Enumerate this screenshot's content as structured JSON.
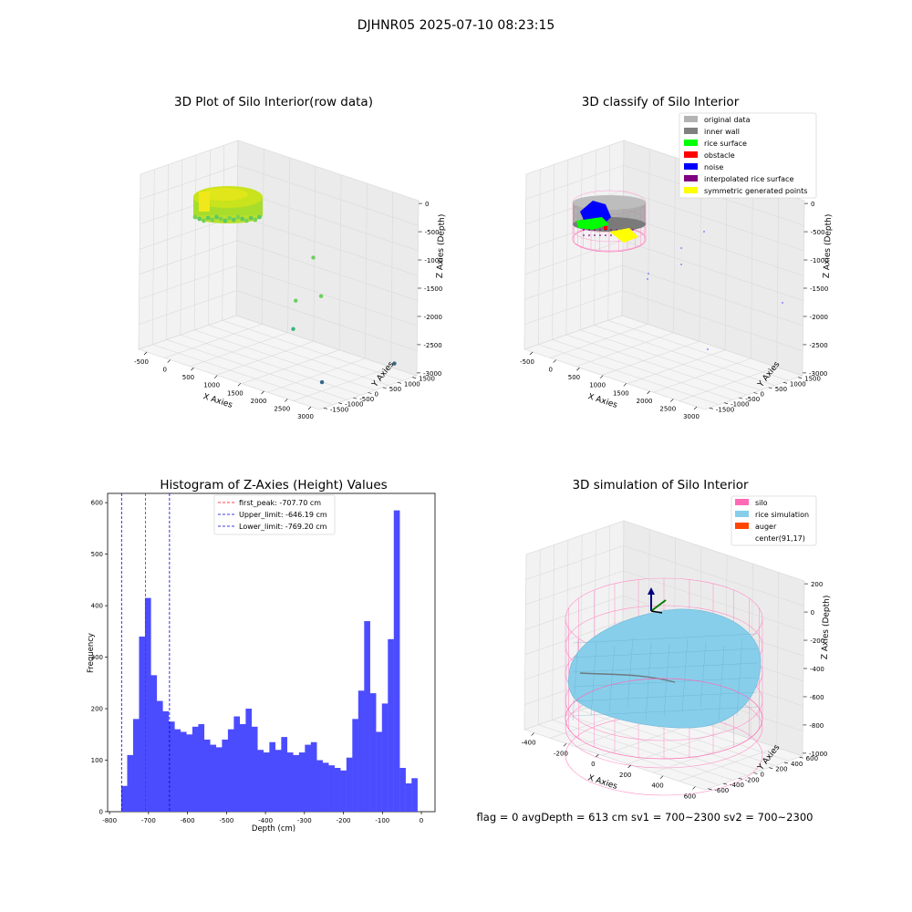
{
  "suptitle": "DJHNR05 2025-07-10 08:23:15",
  "footer": "flag = 0     avgDepth = 613 cm  sv1 = 700~2300  sv2 = 700~2300",
  "chart_data": [
    {
      "type": "scatter",
      "projection": "3d",
      "title": "3D Plot of Silo Interior(row data)",
      "xlabel": "X Axies",
      "ylabel": "Y Axies",
      "zlabel": "Z Axies (Depth)",
      "xticks": [
        "-500",
        "0",
        "500",
        "1000",
        "1500",
        "2000",
        "2500",
        "3000"
      ],
      "yticks": [
        "1500",
        "1000",
        "500",
        "0",
        "-500",
        "-1000",
        "-1500"
      ],
      "zticks": [
        "0",
        "-500",
        "-1000",
        "-1500",
        "-2000",
        "-2500",
        "-3000"
      ],
      "xlim": [
        -700,
        3200
      ],
      "ylim": [
        -1700,
        1700
      ],
      "zlim": [
        -3100,
        200
      ],
      "colormap": "viridis",
      "outliers": [
        {
          "x": 1500,
          "y": 800,
          "z": -1200
        },
        {
          "x": 1800,
          "y": 600,
          "z": -1800
        },
        {
          "x": 1500,
          "y": 200,
          "z": -1900
        },
        {
          "x": 1700,
          "y": -200,
          "z": -2300
        },
        {
          "x": 2900,
          "y": 1400,
          "z": -2900
        },
        {
          "x": 2700,
          "y": -800,
          "z": -2900
        }
      ]
    },
    {
      "type": "scatter",
      "projection": "3d",
      "title": "3D classify of Silo Interior",
      "xlabel": "X Axies",
      "ylabel": "Y Axies",
      "zlabel": "Z Axies (Depth)",
      "xticks": [
        "-500",
        "0",
        "500",
        "1000",
        "1500",
        "2000",
        "2500",
        "3000"
      ],
      "yticks": [
        "1500",
        "1000",
        "500",
        "0",
        "-500",
        "-1000",
        "-1500"
      ],
      "zticks": [
        "0",
        "-500",
        "-1000",
        "-1500",
        "-2000",
        "-2500",
        "-3000"
      ],
      "legend": [
        {
          "label": "original data",
          "color": "#b3b3b3"
        },
        {
          "label": "inner wall",
          "color": "#808080"
        },
        {
          "label": "rice surface",
          "color": "#00ff00"
        },
        {
          "label": "obstacle",
          "color": "#ff0000"
        },
        {
          "label": "noise",
          "color": "#0000ff"
        },
        {
          "label": "interpolated rice surface",
          "color": "#800080"
        },
        {
          "label": "symmetric generated points",
          "color": "#ffff00"
        }
      ],
      "legend_loc": "upper right"
    },
    {
      "type": "bar",
      "title": "Histogram of Z-Axies (Height) Values",
      "xlabel": "Depth (cm)",
      "ylabel": "Frequency",
      "xlim": [
        -805,
        35
      ],
      "ylim": [
        0,
        618
      ],
      "xticks": [
        -800,
        -700,
        -600,
        -500,
        -400,
        -300,
        -200,
        -100,
        0
      ],
      "yticks": [
        0,
        100,
        200,
        300,
        400,
        500,
        600
      ],
      "bin_start": -770,
      "bin_width": 15.2,
      "values": [
        50,
        110,
        180,
        340,
        415,
        265,
        215,
        195,
        175,
        160,
        155,
        150,
        165,
        170,
        140,
        130,
        125,
        140,
        160,
        185,
        170,
        200,
        165,
        120,
        115,
        135,
        120,
        145,
        115,
        110,
        115,
        130,
        135,
        100,
        95,
        90,
        85,
        80,
        105,
        180,
        235,
        370,
        230,
        155,
        210,
        335,
        585,
        85,
        55,
        65
      ],
      "vlines": [
        {
          "x": -707.7,
          "color": "#ff0000",
          "label": "first_peak: -707.70 cm"
        },
        {
          "x": -646.19,
          "color": "#0000cc",
          "label": "Upper_limit: -646.19 cm"
        },
        {
          "x": -769.2,
          "color": "#0000cc",
          "label": "Lower_limit: -769.20 cm"
        }
      ],
      "bar_color": "#4c4cff",
      "legend_loc": "upper center"
    },
    {
      "type": "surface",
      "projection": "3d",
      "title": "3D simulation of Silo Interior",
      "xlabel": "X Axies",
      "ylabel": "Y Axies",
      "zlabel": "Z Axies (Depth)",
      "xticks": [
        "-400",
        "-200",
        "0",
        "200",
        "400",
        "600"
      ],
      "yticks": [
        "600",
        "400",
        "200",
        "0",
        "-200",
        "-400",
        "-600"
      ],
      "zticks": [
        "200",
        "0",
        "-200",
        "-400",
        "-600",
        "-800",
        "-1000"
      ],
      "legend": [
        {
          "label": "silo",
          "color": "#ff69b4"
        },
        {
          "label": "rice simulation",
          "color": "#87ceeb"
        },
        {
          "label": "auger",
          "color": "#ff4500"
        },
        {
          "label": "center(91,17)",
          "color": "#ffffff"
        }
      ],
      "legend_loc": "upper right"
    }
  ]
}
